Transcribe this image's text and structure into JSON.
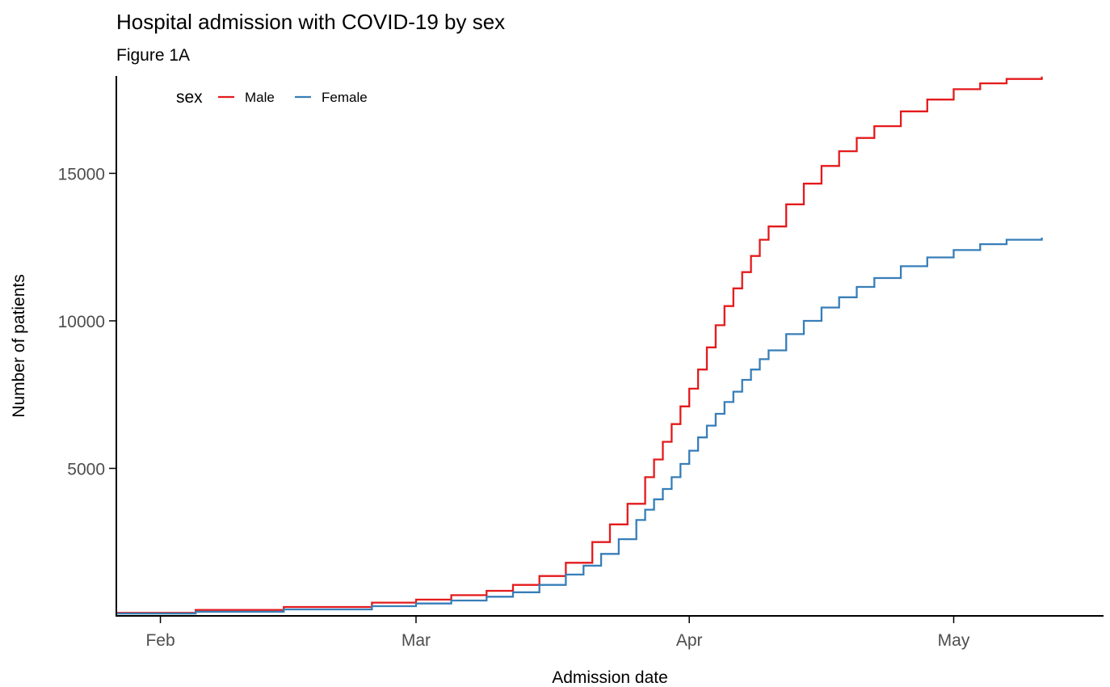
{
  "chart_data": {
    "type": "line",
    "step": true,
    "title": "Hospital admission with COVID-19 by sex",
    "subtitle": "Figure 1A",
    "xlabel": "Admission date",
    "ylabel": "Number of patients",
    "x_range": [
      "2020-01-27",
      "2020-05-18"
    ],
    "ylim": [
      0,
      18300
    ],
    "x_ticks": [
      {
        "value": "2020-02-01",
        "label": "Feb"
      },
      {
        "value": "2020-03-01",
        "label": "Mar"
      },
      {
        "value": "2020-04-01",
        "label": "Apr"
      },
      {
        "value": "2020-05-01",
        "label": "May"
      }
    ],
    "y_ticks": [
      {
        "value": 5000,
        "label": "5000"
      },
      {
        "value": 10000,
        "label": "10000"
      },
      {
        "value": 15000,
        "label": "15000"
      }
    ],
    "grid": false,
    "legend": {
      "title": "sex",
      "position": "top-left inside"
    },
    "series": [
      {
        "name": "Male",
        "color": "#E41A1C",
        "points": [
          [
            "2020-01-27",
            100
          ],
          [
            "2020-02-05",
            200
          ],
          [
            "2020-02-15",
            300
          ],
          [
            "2020-02-25",
            450
          ],
          [
            "2020-03-01",
            550
          ],
          [
            "2020-03-05",
            700
          ],
          [
            "2020-03-09",
            850
          ],
          [
            "2020-03-12",
            1050
          ],
          [
            "2020-03-15",
            1350
          ],
          [
            "2020-03-18",
            1800
          ],
          [
            "2020-03-21",
            2500
          ],
          [
            "2020-03-23",
            3100
          ],
          [
            "2020-03-25",
            3800
          ],
          [
            "2020-03-27",
            4700
          ],
          [
            "2020-03-28",
            5300
          ],
          [
            "2020-03-29",
            5900
          ],
          [
            "2020-03-30",
            6500
          ],
          [
            "2020-03-31",
            7100
          ],
          [
            "2020-04-01",
            7700
          ],
          [
            "2020-04-02",
            8350
          ],
          [
            "2020-04-03",
            9100
          ],
          [
            "2020-04-04",
            9850
          ],
          [
            "2020-04-05",
            10500
          ],
          [
            "2020-04-06",
            11100
          ],
          [
            "2020-04-07",
            11650
          ],
          [
            "2020-04-08",
            12200
          ],
          [
            "2020-04-09",
            12750
          ],
          [
            "2020-04-10",
            13200
          ],
          [
            "2020-04-12",
            13950
          ],
          [
            "2020-04-14",
            14650
          ],
          [
            "2020-04-16",
            15250
          ],
          [
            "2020-04-18",
            15750
          ],
          [
            "2020-04-20",
            16200
          ],
          [
            "2020-04-22",
            16600
          ],
          [
            "2020-04-25",
            17100
          ],
          [
            "2020-04-28",
            17500
          ],
          [
            "2020-05-01",
            17850
          ],
          [
            "2020-05-04",
            18050
          ],
          [
            "2020-05-07",
            18200
          ],
          [
            "2020-05-11",
            18280
          ]
        ]
      },
      {
        "name": "Female",
        "color": "#377EB8",
        "points": [
          [
            "2020-01-27",
            80
          ],
          [
            "2020-02-05",
            140
          ],
          [
            "2020-02-15",
            220
          ],
          [
            "2020-02-25",
            330
          ],
          [
            "2020-03-01",
            420
          ],
          [
            "2020-03-05",
            520
          ],
          [
            "2020-03-09",
            650
          ],
          [
            "2020-03-12",
            800
          ],
          [
            "2020-03-15",
            1050
          ],
          [
            "2020-03-18",
            1400
          ],
          [
            "2020-03-20",
            1700
          ],
          [
            "2020-03-22",
            2100
          ],
          [
            "2020-03-24",
            2600
          ],
          [
            "2020-03-26",
            3250
          ],
          [
            "2020-03-27",
            3600
          ],
          [
            "2020-03-28",
            3950
          ],
          [
            "2020-03-29",
            4300
          ],
          [
            "2020-03-30",
            4700
          ],
          [
            "2020-03-31",
            5150
          ],
          [
            "2020-04-01",
            5600
          ],
          [
            "2020-04-02",
            6050
          ],
          [
            "2020-04-03",
            6450
          ],
          [
            "2020-04-04",
            6850
          ],
          [
            "2020-04-05",
            7250
          ],
          [
            "2020-04-06",
            7600
          ],
          [
            "2020-04-07",
            8000
          ],
          [
            "2020-04-08",
            8350
          ],
          [
            "2020-04-09",
            8700
          ],
          [
            "2020-04-10",
            9000
          ],
          [
            "2020-04-12",
            9550
          ],
          [
            "2020-04-14",
            10000
          ],
          [
            "2020-04-16",
            10450
          ],
          [
            "2020-04-18",
            10800
          ],
          [
            "2020-04-20",
            11150
          ],
          [
            "2020-04-22",
            11450
          ],
          [
            "2020-04-25",
            11850
          ],
          [
            "2020-04-28",
            12150
          ],
          [
            "2020-05-01",
            12400
          ],
          [
            "2020-05-04",
            12600
          ],
          [
            "2020-05-07",
            12750
          ],
          [
            "2020-05-11",
            12820
          ]
        ]
      }
    ]
  }
}
